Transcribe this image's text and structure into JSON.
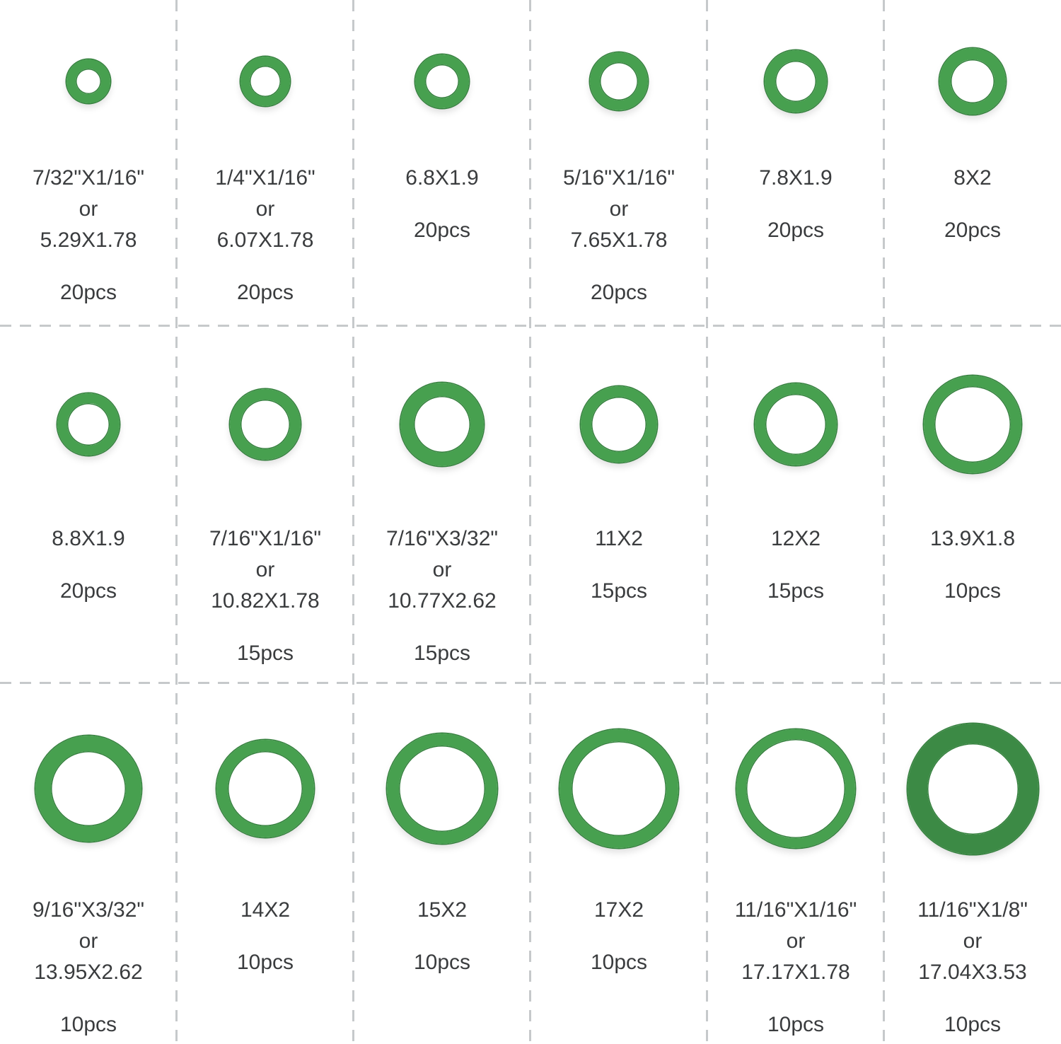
{
  "style": {
    "background": "#ffffff",
    "ring_color": "#47a04f",
    "ring_rim_color": "#35803e",
    "divider_color": "#c6c9cb",
    "text_color": "#3a3c3e"
  },
  "grid": {
    "columns": 6,
    "rows": 3,
    "description": "O-ring assortment size chart"
  },
  "cells": [
    {
      "size": "7/32\"X1/16\"",
      "or": "or",
      "alt": "5.29X1.78",
      "count": "20pcs",
      "ring": {
        "d": 62,
        "t": 13
      }
    },
    {
      "size": "1/4\"X1/16\"",
      "or": "or",
      "alt": "6.07X1.78",
      "count": "20pcs",
      "ring": {
        "d": 70,
        "t": 13
      }
    },
    {
      "size": "6.8X1.9",
      "count": "20pcs",
      "ring": {
        "d": 76,
        "t": 14
      }
    },
    {
      "size": "5/16\"X1/16\"",
      "or": "or",
      "alt": "7.65X1.78",
      "count": "20pcs",
      "ring": {
        "d": 82,
        "t": 14
      }
    },
    {
      "size": "7.8X1.9",
      "count": "20pcs",
      "ring": {
        "d": 88,
        "t": 15
      }
    },
    {
      "size": "8X2",
      "count": "20pcs",
      "ring": {
        "d": 94,
        "t": 16
      }
    },
    {
      "size": "8.8X1.9",
      "count": "20pcs",
      "ring": {
        "d": 88,
        "t": 14
      }
    },
    {
      "size": "7/16\"X1/16\"",
      "or": "or",
      "alt": "10.82X1.78",
      "count": "15pcs",
      "ring": {
        "d": 100,
        "t": 15
      }
    },
    {
      "size": "7/16\"X3/32\"",
      "or": "or",
      "alt": "10.77X2.62",
      "count": "15pcs",
      "ring": {
        "d": 118,
        "t": 19
      }
    },
    {
      "size": "11X2",
      "count": "15pcs",
      "ring": {
        "d": 108,
        "t": 15
      }
    },
    {
      "size": "12X2",
      "count": "15pcs",
      "ring": {
        "d": 116,
        "t": 15
      }
    },
    {
      "size": "13.9X1.8",
      "count": "10pcs",
      "ring": {
        "d": 138,
        "t": 15
      }
    },
    {
      "size": "9/16\"X3/32\"",
      "or": "or",
      "alt": "13.95X2.62",
      "count": "10pcs",
      "ring": {
        "d": 150,
        "t": 22
      }
    },
    {
      "size": "14X2",
      "count": "10pcs",
      "ring": {
        "d": 138,
        "t": 16
      }
    },
    {
      "size": "15X2",
      "count": "10pcs",
      "ring": {
        "d": 156,
        "t": 17
      }
    },
    {
      "size": "17X2",
      "count": "10pcs",
      "ring": {
        "d": 168,
        "t": 17
      }
    },
    {
      "size": "11/16\"X1/16\"",
      "or": "or",
      "alt": "17.17X1.78",
      "count": "10pcs",
      "ring": {
        "d": 168,
        "t": 14
      }
    },
    {
      "size": "11/16\"X1/8\"",
      "or": "or",
      "alt": "17.04X3.53",
      "count": "10pcs",
      "ring": {
        "d": 185,
        "t": 28,
        "color": "#3c8a45"
      }
    }
  ]
}
